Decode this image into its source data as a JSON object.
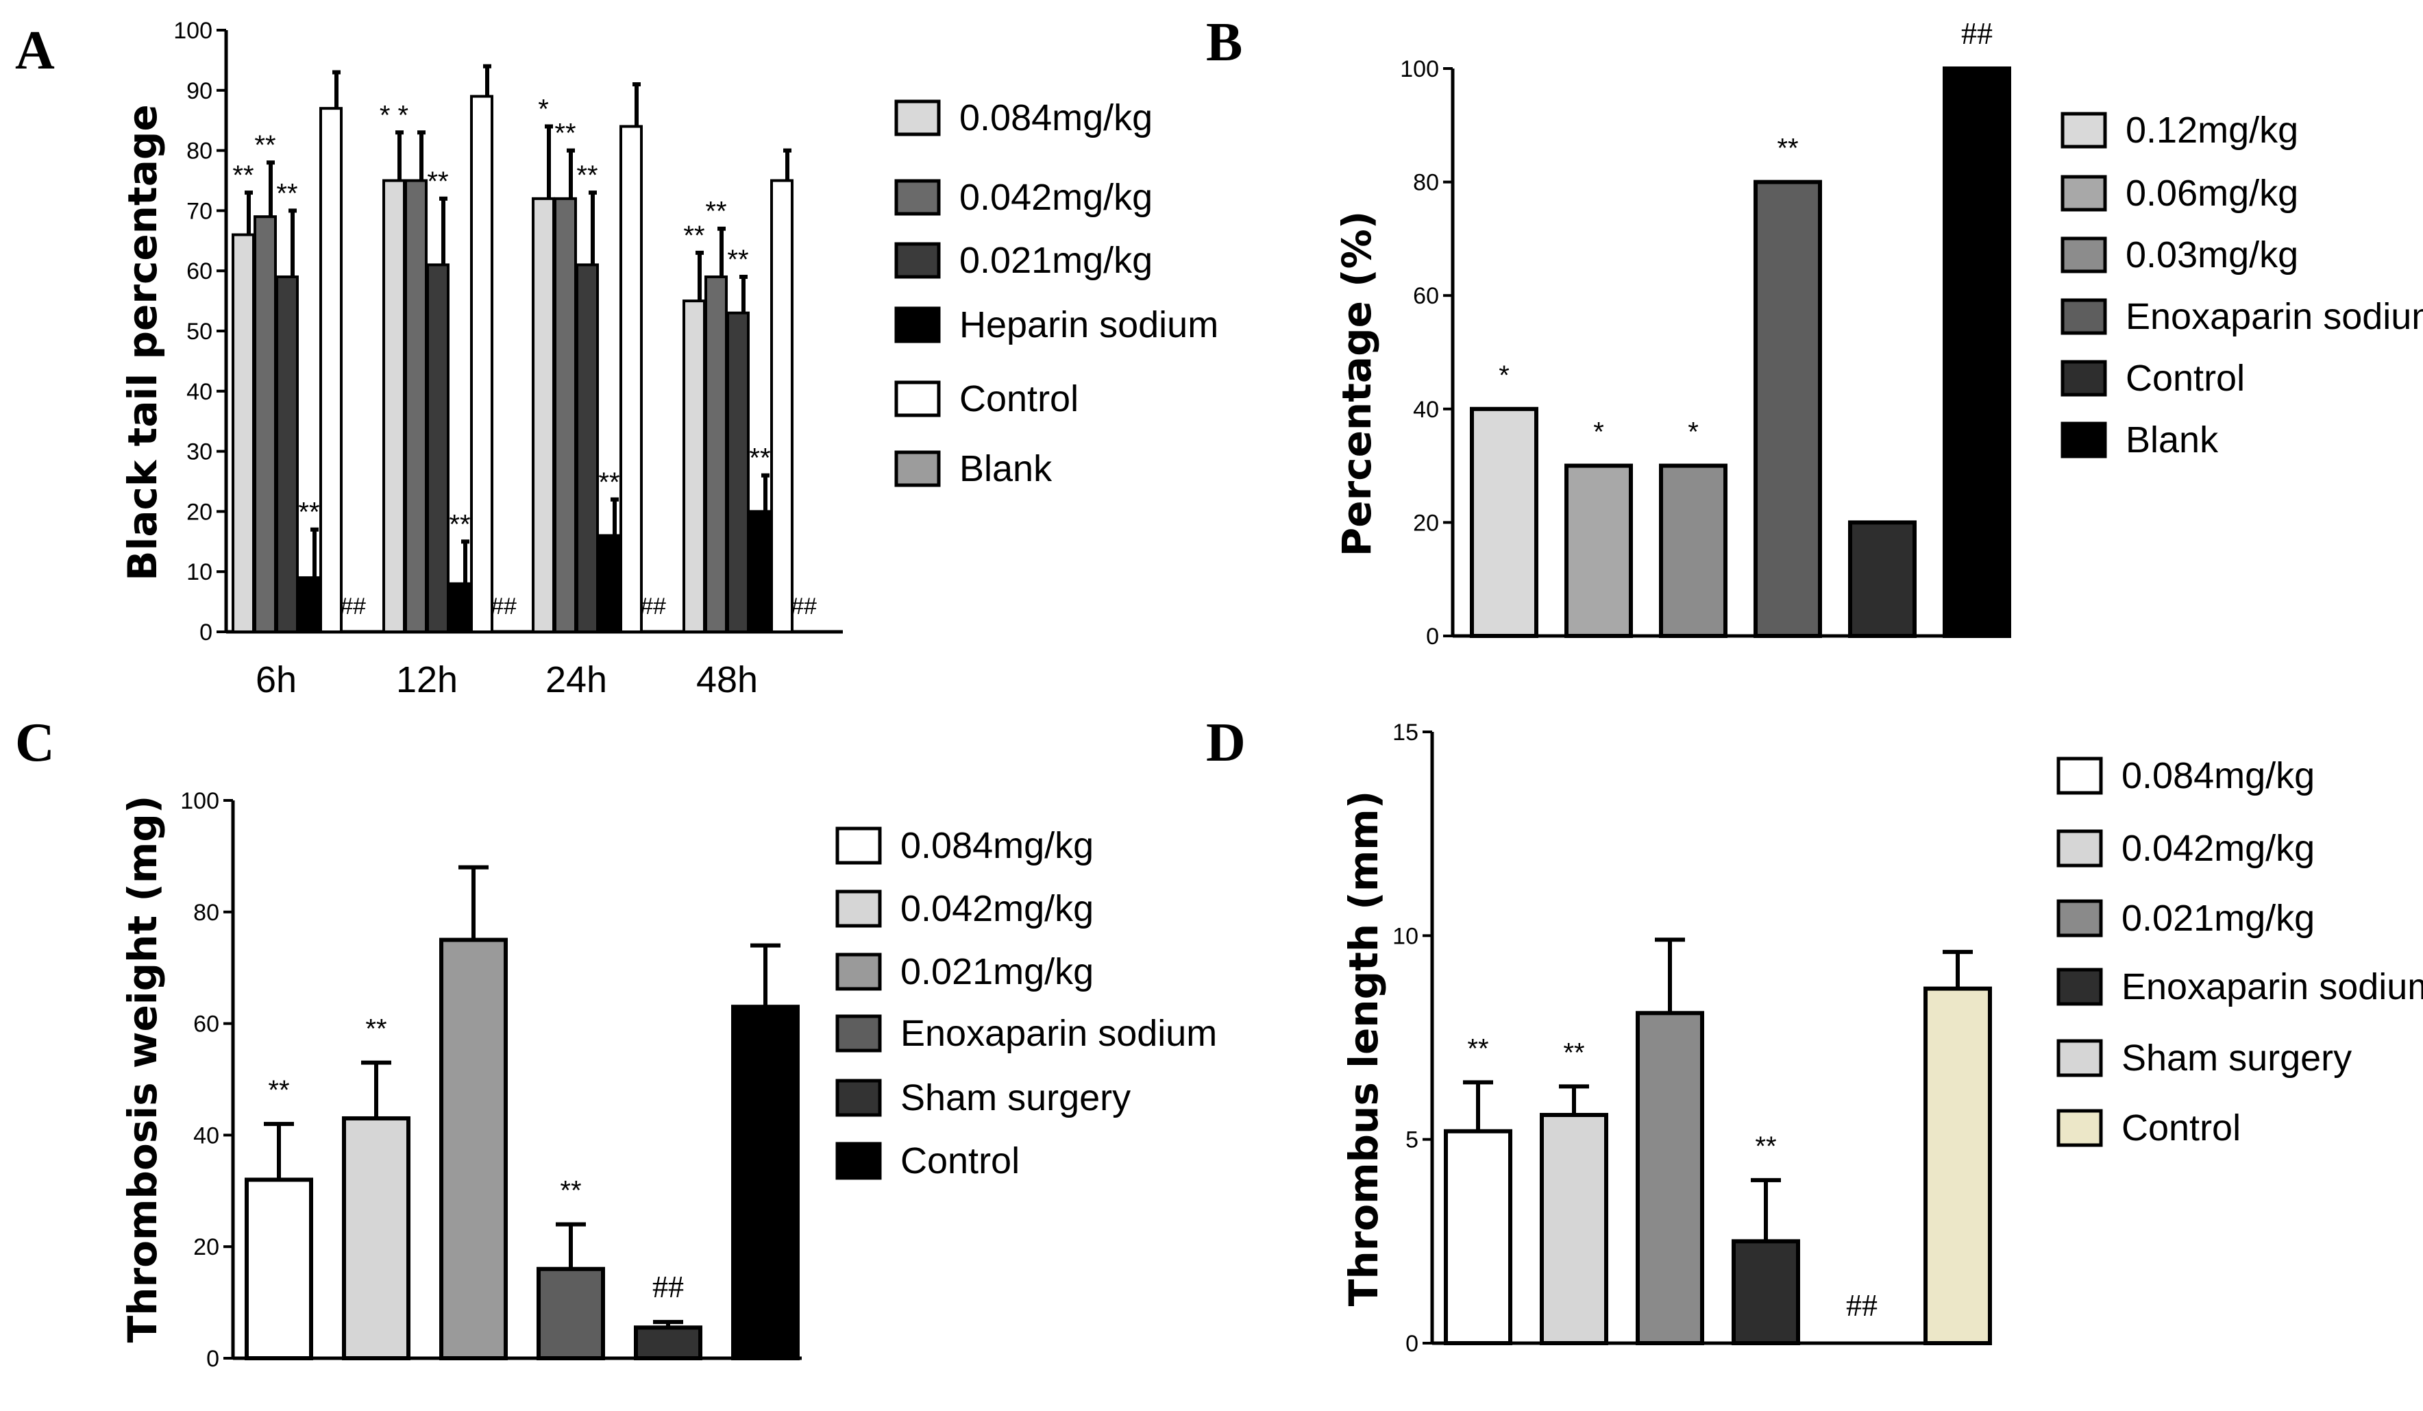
{
  "chart_data": [
    {
      "panel": "A",
      "type": "bar",
      "title": "",
      "xlabel": "",
      "ylabel": "Black tail percentage",
      "ylim": [
        0,
        100
      ],
      "yticks": [
        "0",
        "10",
        "20",
        "30",
        "40",
        "50",
        "60",
        "70",
        "80",
        "90",
        "100"
      ],
      "categories": [
        "6h",
        "12h",
        "24h",
        "48h"
      ],
      "legend_position": "right",
      "series": [
        {
          "name": "0.084mg/kg",
          "color": "#d9d9d9",
          "values": [
            66,
            75,
            72,
            55
          ],
          "errors": [
            7,
            8,
            12,
            8
          ],
          "annotations": [
            "**",
            "* *",
            "*",
            "**"
          ]
        },
        {
          "name": "0.042mg/kg",
          "color": "#6a6a6a",
          "values": [
            69,
            75,
            72,
            59
          ],
          "errors": [
            9,
            8,
            8,
            8
          ],
          "annotations": [
            "**",
            "",
            "**",
            "**"
          ]
        },
        {
          "name": "0.021mg/kg",
          "color": "#3b3b3b",
          "values": [
            59,
            61,
            61,
            53
          ],
          "errors": [
            11,
            11,
            12,
            6
          ],
          "annotations": [
            "**",
            "**",
            "**",
            "**"
          ]
        },
        {
          "name": "Heparin sodium",
          "color": "#000000",
          "values": [
            9,
            8,
            16,
            20
          ],
          "errors": [
            8,
            7,
            6,
            6
          ],
          "annotations": [
            "**",
            "**",
            "**",
            "**"
          ]
        },
        {
          "name": "Control",
          "color": "#ffffff",
          "values": [
            87,
            89,
            84,
            75
          ],
          "errors": [
            6,
            5,
            7,
            5
          ],
          "annotations": [
            "",
            "",
            "",
            ""
          ]
        },
        {
          "name": "Blank",
          "color": "#9c9c9c",
          "values": [
            0,
            0,
            0,
            0
          ],
          "errors": [
            0,
            0,
            0,
            0
          ],
          "annotations": [
            "##",
            "##",
            "##",
            "##"
          ]
        }
      ]
    },
    {
      "panel": "B",
      "type": "bar",
      "title": "",
      "xlabel": "",
      "ylabel": "Percentage (%)",
      "ylim": [
        0,
        100
      ],
      "yticks": [
        "0",
        "20",
        "40",
        "60",
        "80",
        "100"
      ],
      "legend_position": "right",
      "series": [
        {
          "name": "0.12mg/kg",
          "color": "#d9d9d9",
          "value": 40,
          "annotation": "*"
        },
        {
          "name": "0.06mg/kg",
          "color": "#a8a8a8",
          "value": 30,
          "annotation": "*"
        },
        {
          "name": "0.03mg/kg",
          "color": "#8c8c8c",
          "value": 30,
          "annotation": "*"
        },
        {
          "name": "Enoxaparin sodium",
          "color": "#5e5e5e",
          "value": 80,
          "annotation": "**"
        },
        {
          "name": "Control",
          "color": "#2e2e2e",
          "value": 20,
          "annotation": ""
        },
        {
          "name": "Blank",
          "color": "#000000",
          "value": 100,
          "annotation": "##"
        }
      ]
    },
    {
      "panel": "C",
      "type": "bar",
      "title": "",
      "xlabel": "",
      "ylabel": "Thrombosis weight (mg)",
      "ylim": [
        0,
        100
      ],
      "yticks": [
        "0",
        "20",
        "40",
        "60",
        "80",
        "100"
      ],
      "legend_position": "right",
      "series": [
        {
          "name": "0.084mg/kg",
          "color": "#ffffff",
          "value": 32,
          "error": 10,
          "annotation": "**"
        },
        {
          "name": "0.042mg/kg",
          "color": "#d6d6d6",
          "value": 43,
          "error": 10,
          "annotation": "**"
        },
        {
          "name": "0.021mg/kg",
          "color": "#9a9a9a",
          "value": 75,
          "error": 13,
          "annotation": ""
        },
        {
          "name": "Enoxaparin sodium",
          "color": "#5e5e5e",
          "value": 16,
          "error": 8,
          "annotation": "**"
        },
        {
          "name": "Sham surgery",
          "color": "#333333",
          "value": 5.5,
          "error": 1,
          "annotation": "##"
        },
        {
          "name": "Control",
          "color": "#000000",
          "value": 63,
          "error": 11,
          "annotation": ""
        }
      ]
    },
    {
      "panel": "D",
      "type": "bar",
      "title": "",
      "xlabel": "",
      "ylabel": "Thrombus length (mm)",
      "ylim": [
        0,
        15
      ],
      "yticks": [
        "0",
        "5",
        "10",
        "15"
      ],
      "legend_position": "right",
      "series": [
        {
          "name": "0.084mg/kg",
          "color": "#ffffff",
          "value": 5.2,
          "error": 1.2,
          "annotation": "**"
        },
        {
          "name": "0.042mg/kg",
          "color": "#d6d6d6",
          "value": 5.6,
          "error": 0.7,
          "annotation": "**"
        },
        {
          "name": "0.021mg/kg",
          "color": "#8a8a8a",
          "value": 8.1,
          "error": 1.8,
          "annotation": ""
        },
        {
          "name": "Enoxaparin sodium",
          "color": "#2e2e2e",
          "value": 2.5,
          "error": 1.5,
          "annotation": "**"
        },
        {
          "name": "Sham surgery",
          "color": "#d6d6d6",
          "value": 0,
          "error": 0,
          "annotation": "##"
        },
        {
          "name": "Control",
          "color": "#ece7c8",
          "value": 8.7,
          "error": 0.9,
          "annotation": ""
        }
      ]
    }
  ]
}
